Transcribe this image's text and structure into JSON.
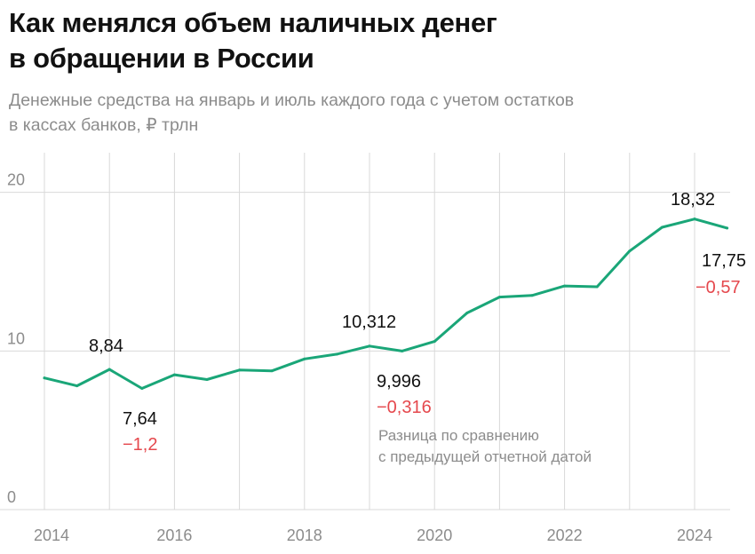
{
  "header": {
    "title_line1": "Как менялся объем наличных денег",
    "title_line2": "в обращении в России",
    "subtitle_line1": "Денежные средства на январь и июль каждого года с учетом остатков",
    "subtitle_line2": "в кассах банков, ₽ трлн"
  },
  "colors": {
    "line": "#1aa678",
    "grid": "#d9d9d9",
    "axis_text": "#8c8c8c",
    "negative": "#e5484d",
    "text": "#111111"
  },
  "chart_data": {
    "type": "line",
    "title": "Как менялся объем наличных денег в обращении в России",
    "subtitle": "Денежные средства на январь и июль каждого года с учетом остатков в кассах банков, ₽ трлн",
    "x": [
      "2014-01",
      "2014-07",
      "2015-01",
      "2015-07",
      "2016-01",
      "2016-07",
      "2017-01",
      "2017-07",
      "2018-01",
      "2018-07",
      "2019-01",
      "2019-07",
      "2020-01",
      "2020-07",
      "2021-01",
      "2021-07",
      "2022-01",
      "2022-07",
      "2023-01",
      "2023-07",
      "2024-01",
      "2024-07"
    ],
    "series": [
      {
        "values": [
          8.3,
          7.8,
          8.84,
          7.64,
          8.5,
          8.2,
          8.8,
          8.75,
          9.5,
          9.8,
          10.312,
          9.996,
          10.6,
          12.4,
          13.4,
          13.5,
          14.1,
          14.05,
          16.3,
          17.8,
          18.32,
          17.75
        ]
      }
    ],
    "x_ticks": [
      "2014",
      "2016",
      "2018",
      "2020",
      "2022",
      "2024"
    ],
    "y_ticks": [
      "0",
      "10",
      "20"
    ],
    "ylim": [
      0,
      22.5
    ],
    "grid": "vertical yearly and horizontal at y ticks",
    "annotations": [
      {
        "text": "8,84"
      },
      {
        "text": "7,64"
      },
      {
        "text": "−1,2",
        "negative": true
      },
      {
        "text": "10,312"
      },
      {
        "text": "9,996"
      },
      {
        "text": "−0,316",
        "negative": true
      },
      {
        "text": "18,32"
      },
      {
        "text": "17,75"
      },
      {
        "text": "−0,57",
        "negative": true
      }
    ],
    "note_line1": "Разница по сравнению",
    "note_line2": "с предыдущей отчетной датой"
  }
}
